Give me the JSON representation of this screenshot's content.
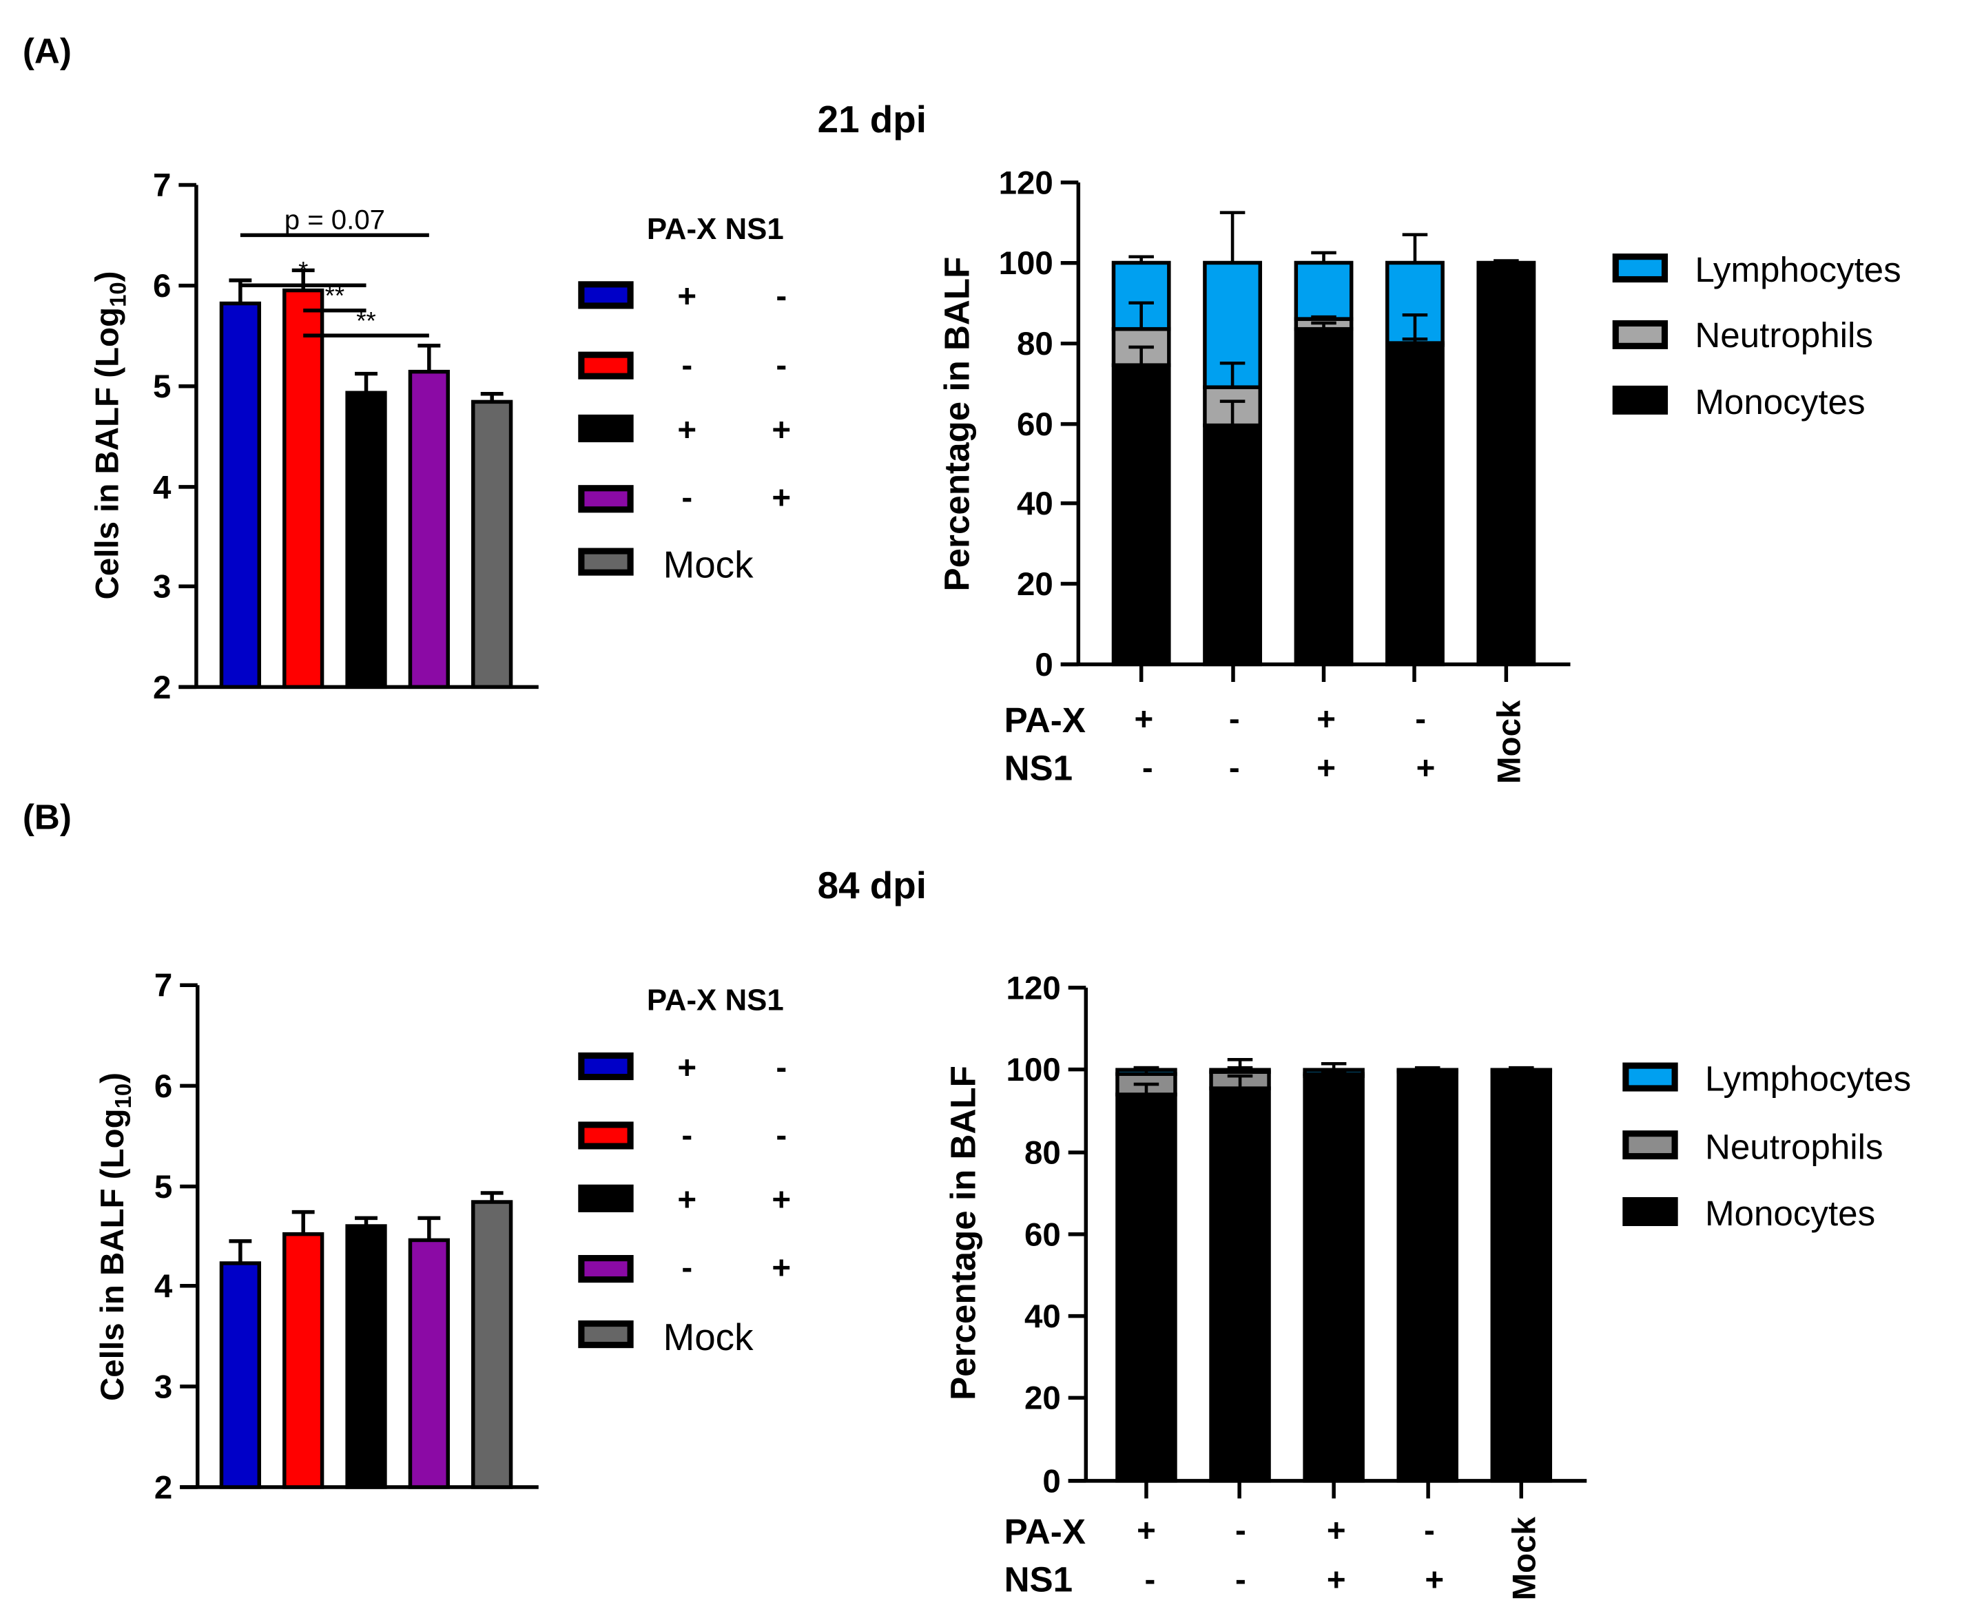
{
  "panels": [
    {
      "label": "(A)",
      "title": "21 dpi",
      "legend_header": "PA-X NS1",
      "legend_rows": [
        {
          "color": "#0000C8",
          "pax": "+",
          "ns1": "-"
        },
        {
          "color": "#FF0000",
          "pax": "-",
          "ns1": "-"
        },
        {
          "color": "#000000",
          "pax": "+",
          "ns1": "+"
        },
        {
          "color": "#8B0AA5",
          "pax": "-",
          "ns1": "+"
        },
        {
          "color": "#666666",
          "text": "Mock"
        }
      ],
      "stack_legend": [
        {
          "label": "Lymphocytes",
          "color": "#00A0F0"
        },
        {
          "label": "Neutrophils",
          "color": "#A6A6A6"
        },
        {
          "label": "Monocytes",
          "color": "#000000"
        }
      ],
      "group_rows": [
        {
          "name": "PA-X",
          "values": [
            "+",
            "-",
            "+",
            "-"
          ]
        },
        {
          "name": "NS1",
          "values": [
            "-",
            "-",
            "+",
            "+"
          ]
        }
      ],
      "mock_label": "Mock"
    },
    {
      "label": "(B)",
      "title": "84 dpi",
      "legend_header": "PA-X NS1",
      "legend_rows": [
        {
          "color": "#0000C8",
          "pax": "+",
          "ns1": "-"
        },
        {
          "color": "#FF0000",
          "pax": "-",
          "ns1": "-"
        },
        {
          "color": "#000000",
          "pax": "+",
          "ns1": "+"
        },
        {
          "color": "#8B0AA5",
          "pax": "-",
          "ns1": "+"
        },
        {
          "color": "#666666",
          "text": "Mock"
        }
      ],
      "stack_legend": [
        {
          "label": "Lymphocytes",
          "color": "#00A0F0"
        },
        {
          "label": "Neutrophils",
          "color": "#8C8C8C"
        },
        {
          "label": "Monocytes",
          "color": "#000000"
        }
      ],
      "group_rows": [
        {
          "name": "PA-X",
          "values": [
            "+",
            "-",
            "+",
            "-"
          ]
        },
        {
          "name": "NS1",
          "values": [
            "-",
            "-",
            "+",
            "+"
          ]
        }
      ],
      "mock_label": "Mock"
    }
  ],
  "chart_data": [
    {
      "type": "bar",
      "panel": "A",
      "ylabel": "Cells in BALF (Log",
      "ylabel_sub": "10",
      "ylabel_end": ")",
      "ylim": [
        2,
        7
      ],
      "yticks": [
        "2",
        "3",
        "4",
        "5",
        "6",
        "7"
      ],
      "values": [
        5.82,
        5.95,
        4.93,
        5.14,
        4.84
      ],
      "errors": [
        0.23,
        0.2,
        0.19,
        0.26,
        0.08
      ],
      "colors": [
        "#0000C8",
        "#FF0000",
        "#000000",
        "#8B0AA5",
        "#666666"
      ],
      "significance": [
        {
          "from": 0,
          "to": 3,
          "y": 6.5,
          "label": "p = 0.07"
        },
        {
          "from": 0,
          "to": 2,
          "y": 6.0,
          "label": "*"
        },
        {
          "from": 1,
          "to": 2,
          "y": 5.75,
          "label": "**"
        },
        {
          "from": 1,
          "to": 3,
          "y": 5.5,
          "label": "**"
        }
      ]
    },
    {
      "type": "bar",
      "stacked": true,
      "panel": "A",
      "ylabel": "Percentage in BALF",
      "ylim": [
        0,
        120
      ],
      "yticks": [
        "0",
        "20",
        "40",
        "60",
        "80",
        "100",
        "120"
      ],
      "series": [
        {
          "name": "Monocytes",
          "values": [
            74.5,
            59.5,
            83.5,
            79.5,
            100
          ],
          "errors": [
            4.5,
            6,
            1.5,
            1.5,
            0
          ]
        },
        {
          "name": "Neutrophils",
          "values": [
            9,
            9.5,
            2.5,
            0.5,
            0
          ],
          "errors": [
            6.5,
            6,
            0.5,
            7,
            0
          ]
        },
        {
          "name": "Lymphocytes",
          "values": [
            16.5,
            31,
            14,
            20,
            0
          ],
          "errors": [
            1.5,
            12.5,
            2.5,
            7,
            0.5
          ]
        }
      ]
    },
    {
      "type": "bar",
      "panel": "B",
      "ylabel": "Cells in BALF (Log",
      "ylabel_sub": "10",
      "ylabel_end": ")",
      "ylim": [
        2,
        7
      ],
      "yticks": [
        "2",
        "3",
        "4",
        "5",
        "6",
        "7"
      ],
      "values": [
        4.23,
        4.52,
        4.6,
        4.46,
        4.84
      ],
      "errors": [
        0.22,
        0.22,
        0.08,
        0.22,
        0.09
      ],
      "colors": [
        "#0000C8",
        "#FF0000",
        "#000000",
        "#8B0AA5",
        "#666666"
      ],
      "significance": []
    },
    {
      "type": "bar",
      "stacked": true,
      "panel": "B",
      "ylabel": "Percentage in BALF",
      "ylim": [
        0,
        120
      ],
      "yticks": [
        "0",
        "20",
        "40",
        "60",
        "80",
        "100",
        "120"
      ],
      "series": [
        {
          "name": "Monocytes",
          "values": [
            94,
            95.5,
            98.5,
            99.5,
            99.5
          ],
          "errors": [
            2.5,
            3,
            0.5,
            0.3,
            0.3
          ]
        },
        {
          "name": "Neutrophils",
          "values": [
            5,
            4,
            0.5,
            0.3,
            0.3
          ],
          "errors": [
            1.5,
            3,
            0.5,
            0.5,
            0.5
          ]
        },
        {
          "name": "Lymphocytes",
          "values": [
            1,
            0.5,
            1,
            0.2,
            0.2
          ],
          "errors": [
            0.5,
            0.5,
            1.5,
            0.5,
            0.5
          ]
        }
      ]
    }
  ]
}
